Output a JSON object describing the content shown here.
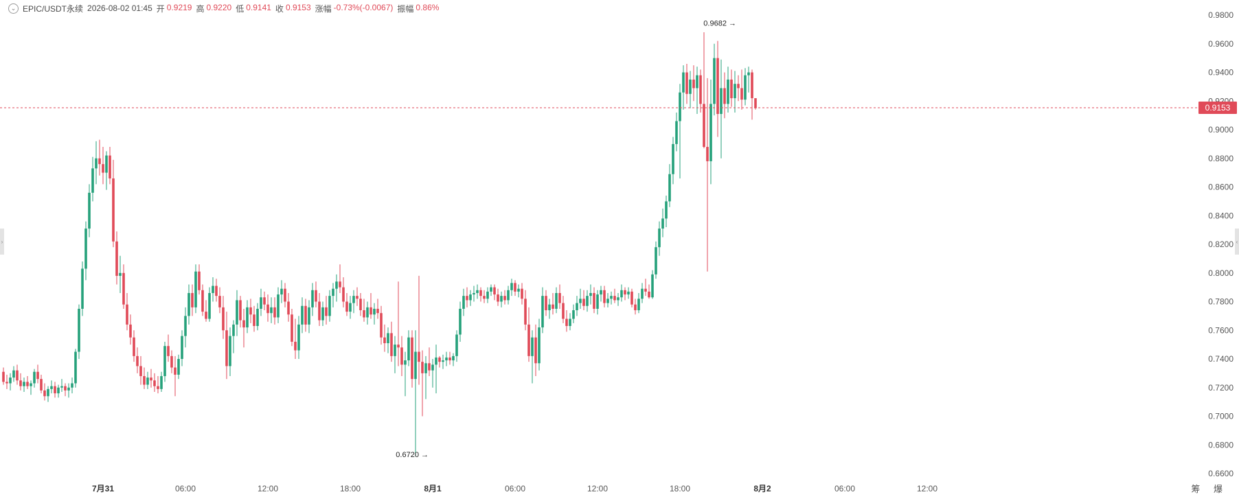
{
  "header": {
    "symbol": "EPIC/USDT永续",
    "datetime": "2026-08-02 01:45",
    "open_label": "开",
    "open": "0.9219",
    "high_label": "高",
    "high": "0.9220",
    "low_label": "低",
    "low": "0.9141",
    "close_label": "收",
    "close": "0.9153",
    "change_label": "涨幅",
    "change": "-0.73%(-0.0067)",
    "amplitude_label": "振幅",
    "amplitude": "0.86%"
  },
  "footer": {
    "right_text": "筹 爆"
  },
  "colors": {
    "up": "#26a17b",
    "down": "#e04a58",
    "axis_text": "#555555",
    "current_price_bg": "#e04a58"
  },
  "chart_data": {
    "type": "candlestick",
    "y_range": [
      0.66,
      0.98
    ],
    "y_ticks": [
      "0.9800",
      "0.9600",
      "0.9400",
      "0.9200",
      "0.9000",
      "0.8800",
      "0.8600",
      "0.8400",
      "0.8200",
      "0.8000",
      "0.7800",
      "0.7600",
      "0.7400",
      "0.7200",
      "0.7000",
      "0.6800",
      "0.6600"
    ],
    "x_labels": [
      {
        "label": "7月31",
        "bold": true,
        "index": 29
      },
      {
        "label": "06:00",
        "bold": false,
        "index": 53
      },
      {
        "label": "12:00",
        "bold": false,
        "index": 77
      },
      {
        "label": "18:00",
        "bold": false,
        "index": 101
      },
      {
        "label": "8月1",
        "bold": true,
        "index": 125
      },
      {
        "label": "06:00",
        "bold": false,
        "index": 149
      },
      {
        "label": "12:00",
        "bold": false,
        "index": 173
      },
      {
        "label": "18:00",
        "bold": false,
        "index": 197
      },
      {
        "label": "8月2",
        "bold": true,
        "index": 221
      },
      {
        "label": "06:00",
        "bold": false,
        "index": 245
      },
      {
        "label": "12:00",
        "bold": false,
        "index": 269
      }
    ],
    "current_price": "0.9153",
    "max_marker": {
      "label": "0.9682",
      "value": 0.9682,
      "index": 215
    },
    "min_marker": {
      "label": "0.6720",
      "value": 0.672,
      "index": 125
    },
    "candles": [
      [
        0.731,
        0.734,
        0.722,
        0.724
      ],
      [
        0.724,
        0.729,
        0.719,
        0.723
      ],
      [
        0.723,
        0.73,
        0.718,
        0.727
      ],
      [
        0.727,
        0.735,
        0.724,
        0.732
      ],
      [
        0.732,
        0.736,
        0.722,
        0.725
      ],
      [
        0.725,
        0.73,
        0.718,
        0.721
      ],
      [
        0.721,
        0.727,
        0.717,
        0.724
      ],
      [
        0.724,
        0.728,
        0.719,
        0.721
      ],
      [
        0.721,
        0.725,
        0.715,
        0.723
      ],
      [
        0.723,
        0.733,
        0.72,
        0.731
      ],
      [
        0.731,
        0.736,
        0.723,
        0.726
      ],
      [
        0.726,
        0.729,
        0.716,
        0.718
      ],
      [
        0.718,
        0.723,
        0.711,
        0.714
      ],
      [
        0.714,
        0.721,
        0.71,
        0.719
      ],
      [
        0.719,
        0.725,
        0.716,
        0.721
      ],
      [
        0.721,
        0.724,
        0.713,
        0.716
      ],
      [
        0.716,
        0.722,
        0.713,
        0.72
      ],
      [
        0.72,
        0.726,
        0.717,
        0.721
      ],
      [
        0.721,
        0.723,
        0.714,
        0.718
      ],
      [
        0.718,
        0.723,
        0.713,
        0.72
      ],
      [
        0.72,
        0.727,
        0.716,
        0.723
      ],
      [
        0.723,
        0.747,
        0.72,
        0.745
      ],
      [
        0.745,
        0.778,
        0.74,
        0.775
      ],
      [
        0.775,
        0.808,
        0.77,
        0.803
      ],
      [
        0.803,
        0.836,
        0.795,
        0.831
      ],
      [
        0.831,
        0.862,
        0.825,
        0.856
      ],
      [
        0.856,
        0.881,
        0.85,
        0.873
      ],
      [
        0.873,
        0.892,
        0.862,
        0.88
      ],
      [
        0.88,
        0.893,
        0.868,
        0.876
      ],
      [
        0.876,
        0.888,
        0.862,
        0.87
      ],
      [
        0.87,
        0.885,
        0.858,
        0.882
      ],
      [
        0.882,
        0.888,
        0.862,
        0.866
      ],
      [
        0.866,
        0.879,
        0.818,
        0.822
      ],
      [
        0.822,
        0.829,
        0.792,
        0.798
      ],
      [
        0.798,
        0.812,
        0.786,
        0.8
      ],
      [
        0.8,
        0.806,
        0.775,
        0.778
      ],
      [
        0.778,
        0.786,
        0.76,
        0.764
      ],
      [
        0.764,
        0.771,
        0.75,
        0.755
      ],
      [
        0.755,
        0.76,
        0.738,
        0.742
      ],
      [
        0.742,
        0.748,
        0.73,
        0.735
      ],
      [
        0.735,
        0.742,
        0.722,
        0.728
      ],
      [
        0.728,
        0.734,
        0.719,
        0.722
      ],
      [
        0.722,
        0.731,
        0.719,
        0.727
      ],
      [
        0.727,
        0.733,
        0.72,
        0.725
      ],
      [
        0.725,
        0.73,
        0.717,
        0.721
      ],
      [
        0.721,
        0.728,
        0.716,
        0.719
      ],
      [
        0.719,
        0.731,
        0.717,
        0.728
      ],
      [
        0.728,
        0.752,
        0.724,
        0.749
      ],
      [
        0.749,
        0.757,
        0.738,
        0.742
      ],
      [
        0.742,
        0.746,
        0.73,
        0.734
      ],
      [
        0.734,
        0.742,
        0.714,
        0.729
      ],
      [
        0.729,
        0.743,
        0.726,
        0.74
      ],
      [
        0.74,
        0.76,
        0.735,
        0.756
      ],
      [
        0.756,
        0.776,
        0.748,
        0.77
      ],
      [
        0.77,
        0.792,
        0.764,
        0.786
      ],
      [
        0.786,
        0.792,
        0.77,
        0.776
      ],
      [
        0.776,
        0.806,
        0.772,
        0.801
      ],
      [
        0.801,
        0.806,
        0.785,
        0.788
      ],
      [
        0.788,
        0.792,
        0.77,
        0.773
      ],
      [
        0.773,
        0.781,
        0.766,
        0.768
      ],
      [
        0.768,
        0.79,
        0.766,
        0.786
      ],
      [
        0.786,
        0.797,
        0.78,
        0.791
      ],
      [
        0.791,
        0.796,
        0.78,
        0.784
      ],
      [
        0.784,
        0.79,
        0.772,
        0.776
      ],
      [
        0.776,
        0.784,
        0.754,
        0.76
      ],
      [
        0.76,
        0.773,
        0.726,
        0.735
      ],
      [
        0.735,
        0.762,
        0.728,
        0.756
      ],
      [
        0.756,
        0.767,
        0.744,
        0.764
      ],
      [
        0.764,
        0.788,
        0.756,
        0.781
      ],
      [
        0.781,
        0.784,
        0.762,
        0.767
      ],
      [
        0.767,
        0.775,
        0.748,
        0.762
      ],
      [
        0.762,
        0.781,
        0.758,
        0.776
      ],
      [
        0.776,
        0.782,
        0.765,
        0.771
      ],
      [
        0.771,
        0.777,
        0.759,
        0.763
      ],
      [
        0.763,
        0.779,
        0.76,
        0.775
      ],
      [
        0.775,
        0.789,
        0.77,
        0.783
      ],
      [
        0.783,
        0.787,
        0.774,
        0.778
      ],
      [
        0.778,
        0.785,
        0.766,
        0.772
      ],
      [
        0.772,
        0.783,
        0.765,
        0.776
      ],
      [
        0.776,
        0.783,
        0.764,
        0.769
      ],
      [
        0.769,
        0.79,
        0.765,
        0.785
      ],
      [
        0.785,
        0.795,
        0.779,
        0.789
      ],
      [
        0.789,
        0.793,
        0.776,
        0.78
      ],
      [
        0.78,
        0.786,
        0.766,
        0.771
      ],
      [
        0.771,
        0.775,
        0.749,
        0.752
      ],
      [
        0.752,
        0.768,
        0.74,
        0.746
      ],
      [
        0.746,
        0.77,
        0.74,
        0.764
      ],
      [
        0.764,
        0.783,
        0.758,
        0.777
      ],
      [
        0.777,
        0.782,
        0.759,
        0.764
      ],
      [
        0.764,
        0.781,
        0.758,
        0.776
      ],
      [
        0.776,
        0.793,
        0.77,
        0.788
      ],
      [
        0.788,
        0.794,
        0.776,
        0.78
      ],
      [
        0.78,
        0.786,
        0.763,
        0.767
      ],
      [
        0.767,
        0.78,
        0.763,
        0.776
      ],
      [
        0.776,
        0.784,
        0.764,
        0.77
      ],
      [
        0.77,
        0.788,
        0.766,
        0.784
      ],
      [
        0.784,
        0.793,
        0.776,
        0.789
      ],
      [
        0.789,
        0.799,
        0.78,
        0.794
      ],
      [
        0.794,
        0.806,
        0.786,
        0.79
      ],
      [
        0.79,
        0.797,
        0.776,
        0.78
      ],
      [
        0.78,
        0.786,
        0.77,
        0.773
      ],
      [
        0.773,
        0.784,
        0.768,
        0.779
      ],
      [
        0.779,
        0.788,
        0.772,
        0.784
      ],
      [
        0.784,
        0.79,
        0.777,
        0.782
      ],
      [
        0.782,
        0.786,
        0.77,
        0.774
      ],
      [
        0.774,
        0.782,
        0.766,
        0.769
      ],
      [
        0.769,
        0.78,
        0.764,
        0.776
      ],
      [
        0.776,
        0.786,
        0.768,
        0.771
      ],
      [
        0.771,
        0.779,
        0.764,
        0.775
      ],
      [
        0.775,
        0.782,
        0.768,
        0.772
      ],
      [
        0.772,
        0.777,
        0.75,
        0.755
      ],
      [
        0.755,
        0.764,
        0.745,
        0.751
      ],
      [
        0.751,
        0.762,
        0.744,
        0.758
      ],
      [
        0.758,
        0.766,
        0.738,
        0.742
      ],
      [
        0.742,
        0.756,
        0.73,
        0.75
      ],
      [
        0.75,
        0.794,
        0.735,
        0.748
      ],
      [
        0.748,
        0.756,
        0.728,
        0.736
      ],
      [
        0.736,
        0.745,
        0.714,
        0.739
      ],
      [
        0.739,
        0.76,
        0.735,
        0.755
      ],
      [
        0.755,
        0.76,
        0.72,
        0.726
      ],
      [
        0.726,
        0.76,
        0.672,
        0.745
      ],
      [
        0.745,
        0.798,
        0.722,
        0.738
      ],
      [
        0.738,
        0.746,
        0.7,
        0.73
      ],
      [
        0.73,
        0.742,
        0.712,
        0.737
      ],
      [
        0.737,
        0.748,
        0.728,
        0.732
      ],
      [
        0.732,
        0.74,
        0.72,
        0.736
      ],
      [
        0.736,
        0.75,
        0.716,
        0.741
      ],
      [
        0.741,
        0.742,
        0.734,
        0.738
      ],
      [
        0.738,
        0.743,
        0.733,
        0.739
      ],
      [
        0.739,
        0.745,
        0.735,
        0.741
      ],
      [
        0.741,
        0.745,
        0.736,
        0.739
      ],
      [
        0.739,
        0.744,
        0.735,
        0.742
      ],
      [
        0.742,
        0.76,
        0.738,
        0.757
      ],
      [
        0.757,
        0.78,
        0.752,
        0.775
      ],
      [
        0.775,
        0.789,
        0.77,
        0.784
      ],
      [
        0.784,
        0.79,
        0.776,
        0.781
      ],
      [
        0.781,
        0.788,
        0.777,
        0.785
      ],
      [
        0.785,
        0.791,
        0.78,
        0.786
      ],
      [
        0.786,
        0.792,
        0.782,
        0.788
      ],
      [
        0.788,
        0.79,
        0.78,
        0.784
      ],
      [
        0.784,
        0.788,
        0.779,
        0.782
      ],
      [
        0.782,
        0.79,
        0.779,
        0.787
      ],
      [
        0.787,
        0.792,
        0.784,
        0.79
      ],
      [
        0.79,
        0.792,
        0.781,
        0.785
      ],
      [
        0.785,
        0.789,
        0.777,
        0.78
      ],
      [
        0.78,
        0.787,
        0.776,
        0.784
      ],
      [
        0.784,
        0.788,
        0.778,
        0.781
      ],
      [
        0.781,
        0.791,
        0.778,
        0.788
      ],
      [
        0.788,
        0.796,
        0.784,
        0.793
      ],
      [
        0.793,
        0.795,
        0.784,
        0.787
      ],
      [
        0.787,
        0.792,
        0.783,
        0.789
      ],
      [
        0.789,
        0.793,
        0.778,
        0.782
      ],
      [
        0.782,
        0.788,
        0.76,
        0.764
      ],
      [
        0.764,
        0.776,
        0.738,
        0.742
      ],
      [
        0.742,
        0.76,
        0.723,
        0.755
      ],
      [
        0.755,
        0.764,
        0.728,
        0.737
      ],
      [
        0.737,
        0.768,
        0.732,
        0.762
      ],
      [
        0.762,
        0.79,
        0.758,
        0.784
      ],
      [
        0.784,
        0.788,
        0.77,
        0.774
      ],
      [
        0.774,
        0.782,
        0.768,
        0.778
      ],
      [
        0.778,
        0.786,
        0.771,
        0.775
      ],
      [
        0.775,
        0.79,
        0.772,
        0.786
      ],
      [
        0.786,
        0.792,
        0.775,
        0.779
      ],
      [
        0.779,
        0.784,
        0.765,
        0.768
      ],
      [
        0.768,
        0.774,
        0.759,
        0.763
      ],
      [
        0.763,
        0.772,
        0.76,
        0.768
      ],
      [
        0.768,
        0.778,
        0.765,
        0.774
      ],
      [
        0.774,
        0.784,
        0.77,
        0.779
      ],
      [
        0.779,
        0.789,
        0.775,
        0.782
      ],
      [
        0.782,
        0.788,
        0.774,
        0.777
      ],
      [
        0.777,
        0.788,
        0.773,
        0.784
      ],
      [
        0.784,
        0.792,
        0.778,
        0.786
      ],
      [
        0.786,
        0.79,
        0.772,
        0.775
      ],
      [
        0.775,
        0.788,
        0.771,
        0.785
      ],
      [
        0.785,
        0.791,
        0.78,
        0.788
      ],
      [
        0.788,
        0.791,
        0.776,
        0.779
      ],
      [
        0.779,
        0.786,
        0.776,
        0.782
      ],
      [
        0.782,
        0.787,
        0.778,
        0.784
      ],
      [
        0.784,
        0.789,
        0.779,
        0.781
      ],
      [
        0.781,
        0.786,
        0.777,
        0.783
      ],
      [
        0.783,
        0.792,
        0.78,
        0.788
      ],
      [
        0.788,
        0.79,
        0.781,
        0.785
      ],
      [
        0.785,
        0.79,
        0.782,
        0.787
      ],
      [
        0.787,
        0.789,
        0.776,
        0.778
      ],
      [
        0.778,
        0.782,
        0.771,
        0.774
      ],
      [
        0.774,
        0.786,
        0.772,
        0.782
      ],
      [
        0.782,
        0.793,
        0.779,
        0.789
      ],
      [
        0.789,
        0.796,
        0.784,
        0.787
      ],
      [
        0.787,
        0.792,
        0.782,
        0.783
      ],
      [
        0.783,
        0.802,
        0.782,
        0.799
      ],
      [
        0.799,
        0.822,
        0.796,
        0.818
      ],
      [
        0.818,
        0.836,
        0.812,
        0.831
      ],
      [
        0.831,
        0.845,
        0.825,
        0.838
      ],
      [
        0.838,
        0.854,
        0.832,
        0.85
      ],
      [
        0.85,
        0.876,
        0.846,
        0.869
      ],
      [
        0.869,
        0.895,
        0.862,
        0.89
      ],
      [
        0.89,
        0.912,
        0.885,
        0.906
      ],
      [
        0.906,
        0.932,
        0.866,
        0.926
      ],
      [
        0.926,
        0.945,
        0.914,
        0.94
      ],
      [
        0.94,
        0.946,
        0.918,
        0.925
      ],
      [
        0.925,
        0.941,
        0.915,
        0.935
      ],
      [
        0.935,
        0.945,
        0.92,
        0.929
      ],
      [
        0.929,
        0.944,
        0.911,
        0.938
      ],
      [
        0.938,
        0.942,
        0.912,
        0.918
      ],
      [
        0.918,
        0.968,
        0.887,
        0.888
      ],
      [
        0.888,
        0.936,
        0.801,
        0.878
      ],
      [
        0.878,
        0.935,
        0.862,
        0.918
      ],
      [
        0.918,
        0.96,
        0.91,
        0.95
      ],
      [
        0.95,
        0.962,
        0.895,
        0.911
      ],
      [
        0.911,
        0.949,
        0.88,
        0.929
      ],
      [
        0.929,
        0.94,
        0.908,
        0.918
      ],
      [
        0.918,
        0.944,
        0.912,
        0.935
      ],
      [
        0.935,
        0.942,
        0.916,
        0.922
      ],
      [
        0.922,
        0.941,
        0.912,
        0.932
      ],
      [
        0.932,
        0.938,
        0.92,
        0.929
      ],
      [
        0.929,
        0.942,
        0.914,
        0.921
      ],
      [
        0.921,
        0.943,
        0.917,
        0.938
      ],
      [
        0.938,
        0.944,
        0.926,
        0.94
      ],
      [
        0.94,
        0.942,
        0.907,
        0.922
      ],
      [
        0.922,
        0.922,
        0.914,
        0.915
      ]
    ]
  }
}
